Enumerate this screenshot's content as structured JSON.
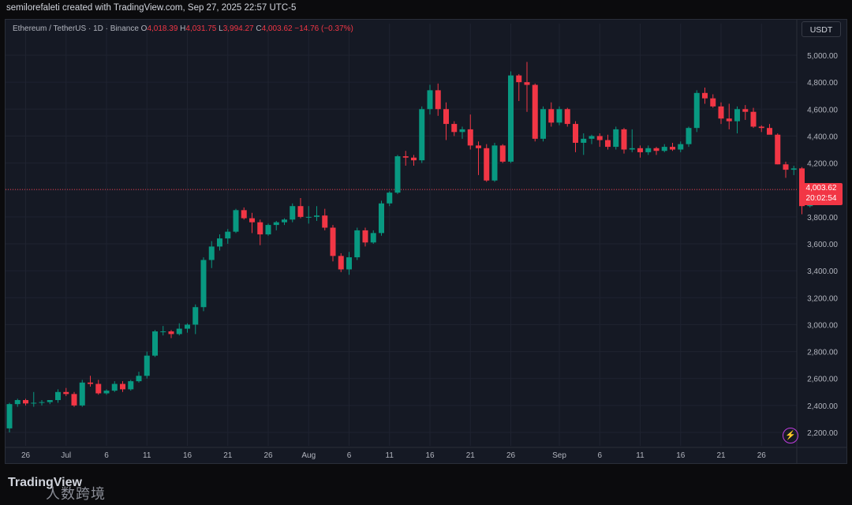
{
  "header": {
    "credit": "semilorefaleti created with TradingView.com, Sep 27, 2025 22:57 UTC-5"
  },
  "legend": {
    "symbol": "Ethereum / TetherUS · 1D · Binance",
    "o_label": "O",
    "o": "4,018.39",
    "h_label": "H",
    "h": "4,031.75",
    "l_label": "L",
    "l": "3,994.27",
    "c_label": "C",
    "c": "4,003.62",
    "change": "−14.76 (−0.37%)"
  },
  "currency_button": "USDT",
  "last_price": {
    "price": "4,003.62",
    "countdown": "20:02:54"
  },
  "branding": {
    "logo": "TradingView",
    "watermark": "人数跨境"
  },
  "colors": {
    "up": "#089981",
    "down": "#f23645",
    "background": "#151924",
    "grid": "#1f2330",
    "price_line": "#f23645",
    "accent_icon": "#c03ee0"
  },
  "icons": {
    "lightning": "lightning-icon"
  },
  "chart_data": {
    "type": "candlestick",
    "symbol": "ETH/USDT",
    "interval": "1D",
    "y_ticks": [
      "2,200.00",
      "2,400.00",
      "2,600.00",
      "2,800.00",
      "3,000.00",
      "3,200.00",
      "3,400.00",
      "3,600.00",
      "3,800.00",
      "4,000.00",
      "4,200.00",
      "4,400.00",
      "4,600.00",
      "4,800.00",
      "5,000.00"
    ],
    "y_tick_values": [
      2200,
      2400,
      2600,
      2800,
      3000,
      3200,
      3400,
      3600,
      3800,
      4000,
      4200,
      4400,
      4600,
      4800,
      5000
    ],
    "ylim": [
      2140,
      5100
    ],
    "x_labels": [
      {
        "i": 2,
        "t": "26"
      },
      {
        "i": 7,
        "t": "Jul"
      },
      {
        "i": 12,
        "t": "6"
      },
      {
        "i": 17,
        "t": "11"
      },
      {
        "i": 22,
        "t": "16"
      },
      {
        "i": 27,
        "t": "21"
      },
      {
        "i": 32,
        "t": "26"
      },
      {
        "i": 37,
        "t": "Aug"
      },
      {
        "i": 42,
        "t": "6"
      },
      {
        "i": 47,
        "t": "11"
      },
      {
        "i": 52,
        "t": "16"
      },
      {
        "i": 57,
        "t": "21"
      },
      {
        "i": 62,
        "t": "26"
      },
      {
        "i": 68,
        "t": "Sep"
      },
      {
        "i": 73,
        "t": "6"
      },
      {
        "i": 78,
        "t": "11"
      },
      {
        "i": 83,
        "t": "16"
      },
      {
        "i": 88,
        "t": "21"
      },
      {
        "i": 93,
        "t": "26"
      }
    ],
    "last_price": 4003.62,
    "candles": [
      [
        2230,
        2420,
        2200,
        2410
      ],
      [
        2410,
        2450,
        2390,
        2440
      ],
      [
        2440,
        2450,
        2400,
        2415
      ],
      [
        2415,
        2500,
        2390,
        2420
      ],
      [
        2420,
        2440,
        2400,
        2425
      ],
      [
        2425,
        2440,
        2410,
        2440
      ],
      [
        2440,
        2520,
        2420,
        2500
      ],
      [
        2500,
        2530,
        2470,
        2485
      ],
      [
        2485,
        2500,
        2390,
        2400
      ],
      [
        2400,
        2590,
        2390,
        2570
      ],
      [
        2570,
        2620,
        2540,
        2560
      ],
      [
        2560,
        2590,
        2480,
        2490
      ],
      [
        2490,
        2520,
        2480,
        2510
      ],
      [
        2510,
        2580,
        2500,
        2560
      ],
      [
        2560,
        2580,
        2500,
        2520
      ],
      [
        2520,
        2590,
        2510,
        2580
      ],
      [
        2580,
        2650,
        2570,
        2620
      ],
      [
        2620,
        2800,
        2600,
        2770
      ],
      [
        2770,
        2960,
        2760,
        2950
      ],
      [
        2950,
        2990,
        2920,
        2950
      ],
      [
        2950,
        2960,
        2900,
        2930
      ],
      [
        2930,
        3010,
        2920,
        2970
      ],
      [
        2970,
        3010,
        2940,
        3000
      ],
      [
        3000,
        3150,
        2930,
        3130
      ],
      [
        3130,
        3500,
        3100,
        3480
      ],
      [
        3480,
        3620,
        3420,
        3580
      ],
      [
        3580,
        3670,
        3550,
        3640
      ],
      [
        3640,
        3710,
        3600,
        3690
      ],
      [
        3690,
        3860,
        3680,
        3850
      ],
      [
        3850,
        3870,
        3780,
        3790
      ],
      [
        3790,
        3830,
        3680,
        3760
      ],
      [
        3760,
        3780,
        3590,
        3670
      ],
      [
        3670,
        3750,
        3660,
        3740
      ],
      [
        3740,
        3770,
        3700,
        3760
      ],
      [
        3760,
        3790,
        3740,
        3780
      ],
      [
        3780,
        3900,
        3760,
        3880
      ],
      [
        3880,
        3940,
        3790,
        3800
      ],
      [
        3800,
        3880,
        3750,
        3800
      ],
      [
        3800,
        3880,
        3770,
        3810
      ],
      [
        3810,
        3860,
        3700,
        3720
      ],
      [
        3720,
        3740,
        3470,
        3510
      ],
      [
        3510,
        3530,
        3390,
        3410
      ],
      [
        3410,
        3540,
        3370,
        3500
      ],
      [
        3500,
        3720,
        3480,
        3700
      ],
      [
        3700,
        3720,
        3580,
        3610
      ],
      [
        3610,
        3700,
        3600,
        3680
      ],
      [
        3680,
        3920,
        3660,
        3900
      ],
      [
        3900,
        3990,
        3880,
        3980
      ],
      [
        3980,
        4260,
        3970,
        4250
      ],
      [
        4250,
        4290,
        4180,
        4240
      ],
      [
        4240,
        4260,
        4180,
        4220
      ],
      [
        4220,
        4620,
        4200,
        4600
      ],
      [
        4600,
        4780,
        4560,
        4740
      ],
      [
        4740,
        4790,
        4550,
        4600
      ],
      [
        4600,
        4650,
        4370,
        4490
      ],
      [
        4490,
        4510,
        4400,
        4430
      ],
      [
        4430,
        4470,
        4380,
        4450
      ],
      [
        4450,
        4560,
        4300,
        4330
      ],
      [
        4330,
        4360,
        4110,
        4310
      ],
      [
        4310,
        4340,
        4060,
        4070
      ],
      [
        4070,
        4350,
        4060,
        4330
      ],
      [
        4330,
        4340,
        4200,
        4210
      ],
      [
        4210,
        4880,
        4200,
        4850
      ],
      [
        4850,
        4860,
        4660,
        4800
      ],
      [
        4800,
        4950,
        4580,
        4780
      ],
      [
        4780,
        4790,
        4360,
        4380
      ],
      [
        4380,
        4620,
        4360,
        4600
      ],
      [
        4600,
        4650,
        4470,
        4500
      ],
      [
        4500,
        4620,
        4480,
        4600
      ],
      [
        4600,
        4610,
        4470,
        4490
      ],
      [
        4490,
        4510,
        4280,
        4350
      ],
      [
        4350,
        4420,
        4260,
        4380
      ],
      [
        4380,
        4410,
        4340,
        4400
      ],
      [
        4400,
        4420,
        4320,
        4370
      ],
      [
        4370,
        4410,
        4300,
        4320
      ],
      [
        4320,
        4470,
        4300,
        4450
      ],
      [
        4450,
        4460,
        4270,
        4300
      ],
      [
        4300,
        4450,
        4280,
        4310
      ],
      [
        4310,
        4330,
        4240,
        4280
      ],
      [
        4280,
        4330,
        4260,
        4310
      ],
      [
        4310,
        4320,
        4260,
        4290
      ],
      [
        4290,
        4340,
        4280,
        4320
      ],
      [
        4320,
        4350,
        4290,
        4300
      ],
      [
        4300,
        4360,
        4280,
        4340
      ],
      [
        4340,
        4470,
        4320,
        4460
      ],
      [
        4460,
        4740,
        4430,
        4720
      ],
      [
        4720,
        4760,
        4640,
        4680
      ],
      [
        4680,
        4710,
        4610,
        4620
      ],
      [
        4620,
        4650,
        4490,
        4530
      ],
      [
        4530,
        4640,
        4450,
        4510
      ],
      [
        4510,
        4620,
        4420,
        4600
      ],
      [
        4600,
        4630,
        4520,
        4580
      ],
      [
        4580,
        4610,
        4460,
        4470
      ],
      [
        4470,
        4480,
        4430,
        4460
      ],
      [
        4460,
        4490,
        4420,
        4410
      ]
    ],
    "candles_tail": [
      [
        4410,
        4420,
        4190,
        4190
      ],
      [
        4190,
        4210,
        4090,
        4150
      ],
      [
        4150,
        4180,
        4110,
        4160
      ],
      [
        4160,
        4170,
        3820,
        3880
      ],
      [
        3880,
        4040,
        3870,
        4020
      ],
      [
        4018.39,
        4031.75,
        3994.27,
        4003.62
      ]
    ]
  }
}
